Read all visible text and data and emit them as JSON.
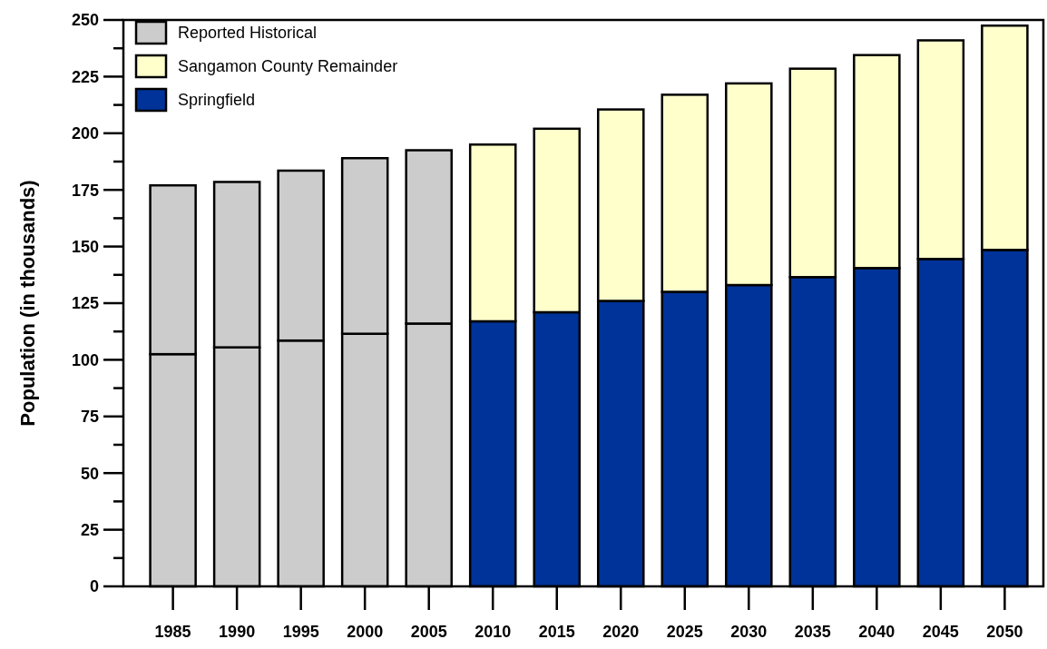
{
  "chart_data": {
    "type": "bar",
    "stacked": true,
    "ylabel": "Population (in thousands)",
    "categories": [
      "1985",
      "1990",
      "1995",
      "2000",
      "2005",
      "2010",
      "2015",
      "2020",
      "2025",
      "2030",
      "2035",
      "2040",
      "2045",
      "2050"
    ],
    "series": [
      {
        "name": "Springfield",
        "color": "#003399",
        "values": [
          null,
          null,
          null,
          null,
          null,
          117,
          121,
          126,
          130,
          133,
          136.5,
          140.5,
          144.5,
          148.5
        ]
      },
      {
        "color": "#cccccc",
        "values": [
          102.5,
          105.5,
          108.5,
          111.5,
          116,
          null,
          null,
          null,
          null,
          null,
          null,
          null,
          null,
          null
        ]
      },
      {
        "name": "Sangamon County Remainder",
        "color": "#ffffcc",
        "values": [
          null,
          null,
          null,
          null,
          null,
          78,
          81,
          84.5,
          87,
          89,
          92,
          94,
          96.5,
          99
        ]
      },
      {
        "name": "Reported Historical",
        "color": "#cccccc",
        "values": [
          74.5,
          73,
          75,
          77.5,
          76.5,
          null,
          null,
          null,
          null,
          null,
          null,
          null,
          null,
          null
        ]
      }
    ],
    "ylim": [
      0,
      250
    ],
    "yticks": [
      0,
      {
        "value": 12.5,
        "label": null
      },
      25,
      {
        "value": 37.5,
        "label": null
      },
      50,
      {
        "value": 62.5,
        "label": null
      },
      75,
      {
        "value": 87.5,
        "label": null
      },
      100,
      {
        "value": 112.5,
        "label": null
      },
      125,
      {
        "value": 137.5,
        "label": null
      },
      150,
      {
        "value": 162.5,
        "label": null
      },
      175,
      {
        "value": 187.5,
        "label": null
      },
      200,
      {
        "value": 212.5,
        "label": null
      },
      225,
      {
        "value": 237.5,
        "label": null
      },
      250
    ],
    "grid": false,
    "legend": "top left"
  }
}
